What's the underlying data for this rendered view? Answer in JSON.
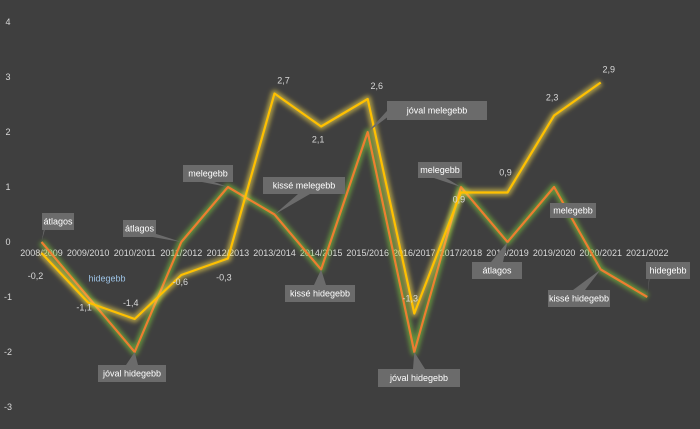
{
  "chart_data": {
    "type": "line",
    "categories": [
      "2008/2009",
      "2009/2010",
      "2010/2011",
      "2011/2012",
      "2012/2013",
      "2013/2014",
      "2014/2015",
      "2015/2016",
      "2016/2017",
      "2017/2018",
      "2018/2019",
      "2019/2020",
      "2020/2021",
      "2021/2022"
    ],
    "ylim": [
      -3,
      4
    ],
    "yticks": [
      -3,
      -2,
      -1,
      0,
      1,
      2,
      3,
      4
    ],
    "grid": false,
    "series": [
      {
        "color": "#ffc000",
        "glow": "#ffe34d",
        "values": [
          -0.2,
          -1.1,
          -1.4,
          -0.6,
          -0.3,
          2.7,
          2.1,
          2.6,
          -1.3,
          0.9,
          0.9,
          2.3,
          2.9,
          null
        ],
        "labels": [
          "-0,2",
          "-1,1",
          "-1,4",
          "-0,6",
          "-0,3",
          "2,7",
          "2,1",
          "2,6",
          "-1,3",
          "0,9",
          "0,9",
          "2,3",
          "2,9",
          ""
        ]
      },
      {
        "color": "#ed7d31",
        "glow": "#7fd13b",
        "values": [
          0,
          -1,
          -2,
          0,
          1,
          0.5,
          -0.5,
          2,
          -2,
          1,
          0,
          1,
          -0.5,
          -1
        ]
      }
    ],
    "callouts": [
      {
        "text": "átlagos",
        "index": 0,
        "blue": false
      },
      {
        "text": "hidegebb",
        "index": 1,
        "blue": true
      },
      {
        "text": "jóval hidegebb",
        "index": 2,
        "blue": false
      },
      {
        "text": "átlagos",
        "index": 3,
        "blue": false
      },
      {
        "text": "melegebb",
        "index": 4,
        "blue": false
      },
      {
        "text": "kissé melegebb",
        "index": 5,
        "blue": false
      },
      {
        "text": "kissé hidegebb",
        "index": 6,
        "blue": false
      },
      {
        "text": "jóval melegebb",
        "index": 7,
        "blue": false
      },
      {
        "text": "jóval hidegebb",
        "index": 8,
        "blue": false
      },
      {
        "text": "melegebb",
        "index": 9,
        "blue": false
      },
      {
        "text": "átlagos",
        "index": 10,
        "blue": false
      },
      {
        "text": "melegebb",
        "index": 11,
        "blue": false
      },
      {
        "text": "kissé hidegebb",
        "index": 12,
        "blue": false
      },
      {
        "text": "hidegebb",
        "index": 13,
        "blue": false
      }
    ]
  }
}
